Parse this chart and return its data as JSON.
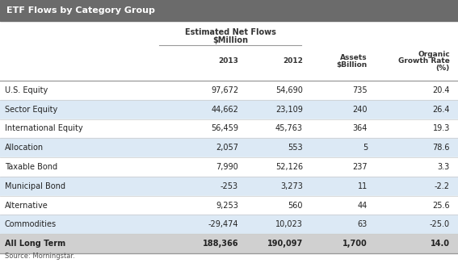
{
  "title": "ETF Flows by Category Group",
  "header_group_line1": "Estimated Net Flows",
  "header_group_line2": "$Million",
  "col_headers": [
    "2013",
    "2012",
    "Assets\n$Billion",
    "Organic\nGrowth Rate\n(%)"
  ],
  "rows": [
    [
      "U.S. Equity",
      "97,672",
      "54,690",
      "735",
      "20.4"
    ],
    [
      "Sector Equity",
      "44,662",
      "23,109",
      "240",
      "26.4"
    ],
    [
      "International Equity",
      "56,459",
      "45,763",
      "364",
      "19.3"
    ],
    [
      "Allocation",
      "2,057",
      "553",
      "5",
      "78.6"
    ],
    [
      "Taxable Bond",
      "7,990",
      "52,126",
      "237",
      "3.3"
    ],
    [
      "Municipal Bond",
      "-253",
      "3,273",
      "11",
      "-2.2"
    ],
    [
      "Alternative",
      "9,253",
      "560",
      "44",
      "25.6"
    ],
    [
      "Commodities",
      "-29,474",
      "10,023",
      "63",
      "-25.0"
    ],
    [
      "All Long Term",
      "188,366",
      "190,097",
      "1,700",
      "14.0"
    ]
  ],
  "source": "Source: Morningstar.",
  "title_bg": "#6b6b6b",
  "title_fg": "#ffffff",
  "header_fg": "#333333",
  "row_bg_blue": "#dce9f5",
  "row_bg_white": "#ffffff",
  "last_row_bg": "#d0d0d0",
  "sep_color": "#999999",
  "row_sep_color": "#cccccc",
  "figsize": [
    5.67,
    3.31
  ],
  "dpi": 100
}
